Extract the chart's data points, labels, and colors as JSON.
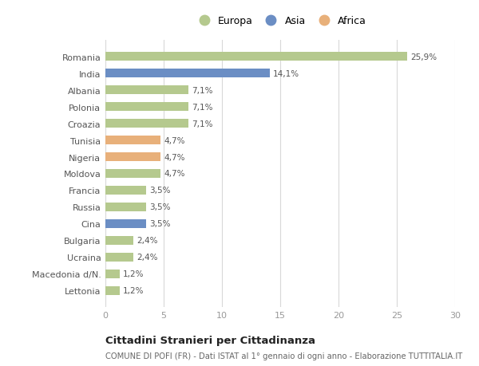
{
  "countries": [
    "Romania",
    "India",
    "Albania",
    "Polonia",
    "Croazia",
    "Tunisia",
    "Nigeria",
    "Moldova",
    "Francia",
    "Russia",
    "Cina",
    "Bulgaria",
    "Ucraina",
    "Macedonia d/N.",
    "Lettonia"
  ],
  "values": [
    25.9,
    14.1,
    7.1,
    7.1,
    7.1,
    4.7,
    4.7,
    4.7,
    3.5,
    3.5,
    3.5,
    2.4,
    2.4,
    1.2,
    1.2
  ],
  "labels": [
    "25,9%",
    "14,1%",
    "7,1%",
    "7,1%",
    "7,1%",
    "4,7%",
    "4,7%",
    "4,7%",
    "3,5%",
    "3,5%",
    "3,5%",
    "2,4%",
    "2,4%",
    "1,2%",
    "1,2%"
  ],
  "continents": [
    "Europa",
    "Asia",
    "Europa",
    "Europa",
    "Europa",
    "Africa",
    "Africa",
    "Europa",
    "Europa",
    "Europa",
    "Asia",
    "Europa",
    "Europa",
    "Europa",
    "Europa"
  ],
  "colors": {
    "Europa": "#b5c98e",
    "Asia": "#6b8ec4",
    "Africa": "#e8b07a"
  },
  "xlim": [
    0,
    30
  ],
  "xticks": [
    0,
    5,
    10,
    15,
    20,
    25,
    30
  ],
  "title": "Cittadini Stranieri per Cittadinanza",
  "subtitle": "COMUNE DI POFI (FR) - Dati ISTAT al 1° gennaio di ogni anno - Elaborazione TUTTITALIA.IT",
  "background_color": "#ffffff",
  "grid_color": "#d8d8d8",
  "bar_height": 0.55,
  "figsize": [
    6.0,
    4.6
  ],
  "dpi": 100,
  "label_color": "#555555",
  "ytick_color": "#555555",
  "xtick_color": "#999999"
}
